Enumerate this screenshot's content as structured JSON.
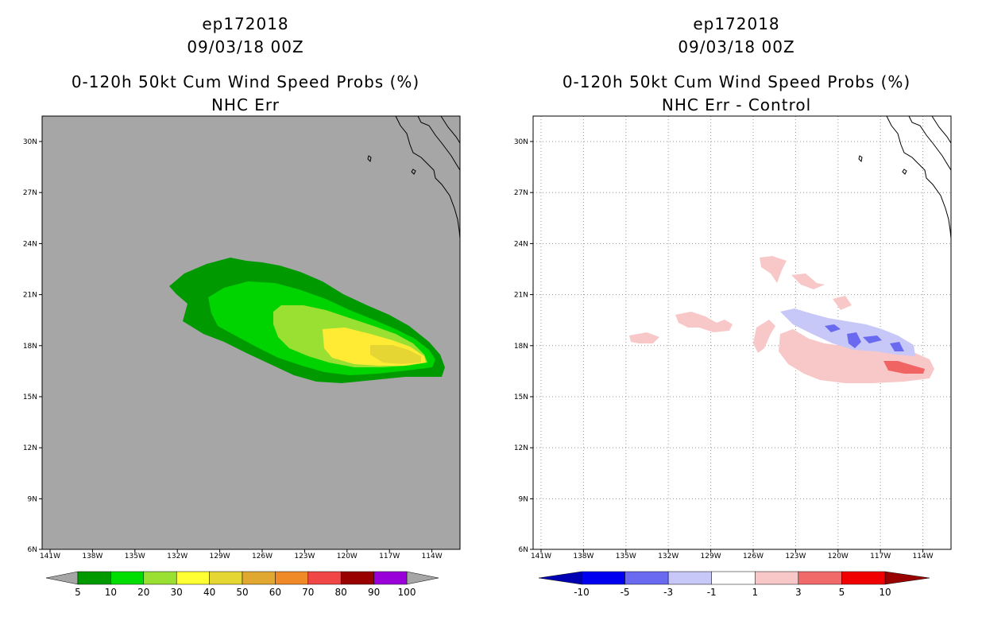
{
  "colors": {
    "land_bg": "#a6a6a6",
    "green_dark": "#009900",
    "green": "#00cc00",
    "green_light": "#99e033",
    "yellow": "#ffeb33",
    "yellow_dark": "#e6d633",
    "pink": "#f8c8c8",
    "blue_light": "#c8c8f8",
    "blue": "#6a6af0",
    "red": "#f06464"
  },
  "lat_labels": [
    "30N",
    "27N",
    "24N",
    "21N",
    "18N",
    "15N",
    "12N",
    "9N",
    "6N"
  ],
  "lon_labels": [
    "141W",
    "138W",
    "135W",
    "132W",
    "129W",
    "126W",
    "123W",
    "120W",
    "117W",
    "114W"
  ],
  "left": {
    "storm_id": "ep172018",
    "datetime": "09/03/18 00Z",
    "product": "0-120h 50kt Cum Wind Speed Probs (%)",
    "subtitle": "NHC Err",
    "colorbar": {
      "labels": [
        "5",
        "10",
        "20",
        "30",
        "40",
        "50",
        "60",
        "70",
        "80",
        "90",
        "100"
      ],
      "colors": [
        "#009900",
        "#00dd00",
        "#99e033",
        "#ffff33",
        "#e6d633",
        "#e0a830",
        "#f08a28",
        "#f04646",
        "#990000",
        "#9900d9"
      ]
    }
  },
  "right": {
    "storm_id": "ep172018",
    "datetime": "09/03/18 00Z",
    "product": "0-120h 50kt Cum Wind Speed Probs (%)",
    "subtitle": "NHC Err - Control",
    "colorbar": {
      "labels": [
        "-10",
        "-5",
        "-3",
        "-1",
        "1",
        "3",
        "5",
        "10"
      ],
      "colors": [
        "#0000b3",
        "#0000f0",
        "#6a6af0",
        "#c8c8f8",
        "#ffffff",
        "#f8c8c8",
        "#f06a6a",
        "#f00000",
        "#990000"
      ]
    }
  }
}
